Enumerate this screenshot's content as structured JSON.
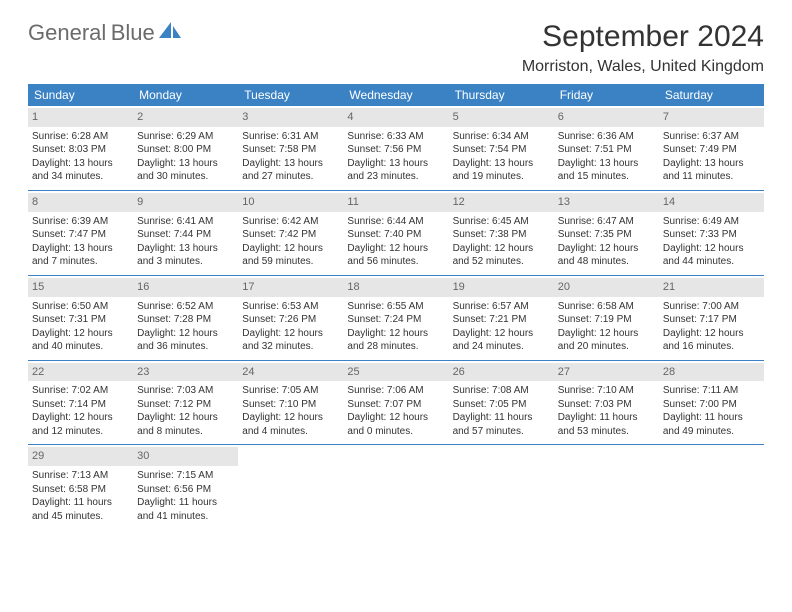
{
  "logo": {
    "text_general": "General",
    "text_blue": "Blue",
    "icon_color": "#3b82c4"
  },
  "title": "September 2024",
  "location": "Morriston, Wales, United Kingdom",
  "colors": {
    "header_bg": "#3b82c4",
    "daynum_bg": "#e6e6e6",
    "text": "#333333",
    "logo_gray": "#6b6b6b"
  },
  "day_names": [
    "Sunday",
    "Monday",
    "Tuesday",
    "Wednesday",
    "Thursday",
    "Friday",
    "Saturday"
  ],
  "weeks": [
    [
      {
        "n": "1",
        "sr": "Sunrise: 6:28 AM",
        "ss": "Sunset: 8:03 PM",
        "d1": "Daylight: 13 hours",
        "d2": "and 34 minutes."
      },
      {
        "n": "2",
        "sr": "Sunrise: 6:29 AM",
        "ss": "Sunset: 8:00 PM",
        "d1": "Daylight: 13 hours",
        "d2": "and 30 minutes."
      },
      {
        "n": "3",
        "sr": "Sunrise: 6:31 AM",
        "ss": "Sunset: 7:58 PM",
        "d1": "Daylight: 13 hours",
        "d2": "and 27 minutes."
      },
      {
        "n": "4",
        "sr": "Sunrise: 6:33 AM",
        "ss": "Sunset: 7:56 PM",
        "d1": "Daylight: 13 hours",
        "d2": "and 23 minutes."
      },
      {
        "n": "5",
        "sr": "Sunrise: 6:34 AM",
        "ss": "Sunset: 7:54 PM",
        "d1": "Daylight: 13 hours",
        "d2": "and 19 minutes."
      },
      {
        "n": "6",
        "sr": "Sunrise: 6:36 AM",
        "ss": "Sunset: 7:51 PM",
        "d1": "Daylight: 13 hours",
        "d2": "and 15 minutes."
      },
      {
        "n": "7",
        "sr": "Sunrise: 6:37 AM",
        "ss": "Sunset: 7:49 PM",
        "d1": "Daylight: 13 hours",
        "d2": "and 11 minutes."
      }
    ],
    [
      {
        "n": "8",
        "sr": "Sunrise: 6:39 AM",
        "ss": "Sunset: 7:47 PM",
        "d1": "Daylight: 13 hours",
        "d2": "and 7 minutes."
      },
      {
        "n": "9",
        "sr": "Sunrise: 6:41 AM",
        "ss": "Sunset: 7:44 PM",
        "d1": "Daylight: 13 hours",
        "d2": "and 3 minutes."
      },
      {
        "n": "10",
        "sr": "Sunrise: 6:42 AM",
        "ss": "Sunset: 7:42 PM",
        "d1": "Daylight: 12 hours",
        "d2": "and 59 minutes."
      },
      {
        "n": "11",
        "sr": "Sunrise: 6:44 AM",
        "ss": "Sunset: 7:40 PM",
        "d1": "Daylight: 12 hours",
        "d2": "and 56 minutes."
      },
      {
        "n": "12",
        "sr": "Sunrise: 6:45 AM",
        "ss": "Sunset: 7:38 PM",
        "d1": "Daylight: 12 hours",
        "d2": "and 52 minutes."
      },
      {
        "n": "13",
        "sr": "Sunrise: 6:47 AM",
        "ss": "Sunset: 7:35 PM",
        "d1": "Daylight: 12 hours",
        "d2": "and 48 minutes."
      },
      {
        "n": "14",
        "sr": "Sunrise: 6:49 AM",
        "ss": "Sunset: 7:33 PM",
        "d1": "Daylight: 12 hours",
        "d2": "and 44 minutes."
      }
    ],
    [
      {
        "n": "15",
        "sr": "Sunrise: 6:50 AM",
        "ss": "Sunset: 7:31 PM",
        "d1": "Daylight: 12 hours",
        "d2": "and 40 minutes."
      },
      {
        "n": "16",
        "sr": "Sunrise: 6:52 AM",
        "ss": "Sunset: 7:28 PM",
        "d1": "Daylight: 12 hours",
        "d2": "and 36 minutes."
      },
      {
        "n": "17",
        "sr": "Sunrise: 6:53 AM",
        "ss": "Sunset: 7:26 PM",
        "d1": "Daylight: 12 hours",
        "d2": "and 32 minutes."
      },
      {
        "n": "18",
        "sr": "Sunrise: 6:55 AM",
        "ss": "Sunset: 7:24 PM",
        "d1": "Daylight: 12 hours",
        "d2": "and 28 minutes."
      },
      {
        "n": "19",
        "sr": "Sunrise: 6:57 AM",
        "ss": "Sunset: 7:21 PM",
        "d1": "Daylight: 12 hours",
        "d2": "and 24 minutes."
      },
      {
        "n": "20",
        "sr": "Sunrise: 6:58 AM",
        "ss": "Sunset: 7:19 PM",
        "d1": "Daylight: 12 hours",
        "d2": "and 20 minutes."
      },
      {
        "n": "21",
        "sr": "Sunrise: 7:00 AM",
        "ss": "Sunset: 7:17 PM",
        "d1": "Daylight: 12 hours",
        "d2": "and 16 minutes."
      }
    ],
    [
      {
        "n": "22",
        "sr": "Sunrise: 7:02 AM",
        "ss": "Sunset: 7:14 PM",
        "d1": "Daylight: 12 hours",
        "d2": "and 12 minutes."
      },
      {
        "n": "23",
        "sr": "Sunrise: 7:03 AM",
        "ss": "Sunset: 7:12 PM",
        "d1": "Daylight: 12 hours",
        "d2": "and 8 minutes."
      },
      {
        "n": "24",
        "sr": "Sunrise: 7:05 AM",
        "ss": "Sunset: 7:10 PM",
        "d1": "Daylight: 12 hours",
        "d2": "and 4 minutes."
      },
      {
        "n": "25",
        "sr": "Sunrise: 7:06 AM",
        "ss": "Sunset: 7:07 PM",
        "d1": "Daylight: 12 hours",
        "d2": "and 0 minutes."
      },
      {
        "n": "26",
        "sr": "Sunrise: 7:08 AM",
        "ss": "Sunset: 7:05 PM",
        "d1": "Daylight: 11 hours",
        "d2": "and 57 minutes."
      },
      {
        "n": "27",
        "sr": "Sunrise: 7:10 AM",
        "ss": "Sunset: 7:03 PM",
        "d1": "Daylight: 11 hours",
        "d2": "and 53 minutes."
      },
      {
        "n": "28",
        "sr": "Sunrise: 7:11 AM",
        "ss": "Sunset: 7:00 PM",
        "d1": "Daylight: 11 hours",
        "d2": "and 49 minutes."
      }
    ],
    [
      {
        "n": "29",
        "sr": "Sunrise: 7:13 AM",
        "ss": "Sunset: 6:58 PM",
        "d1": "Daylight: 11 hours",
        "d2": "and 45 minutes."
      },
      {
        "n": "30",
        "sr": "Sunrise: 7:15 AM",
        "ss": "Sunset: 6:56 PM",
        "d1": "Daylight: 11 hours",
        "d2": "and 41 minutes."
      },
      null,
      null,
      null,
      null,
      null
    ]
  ]
}
